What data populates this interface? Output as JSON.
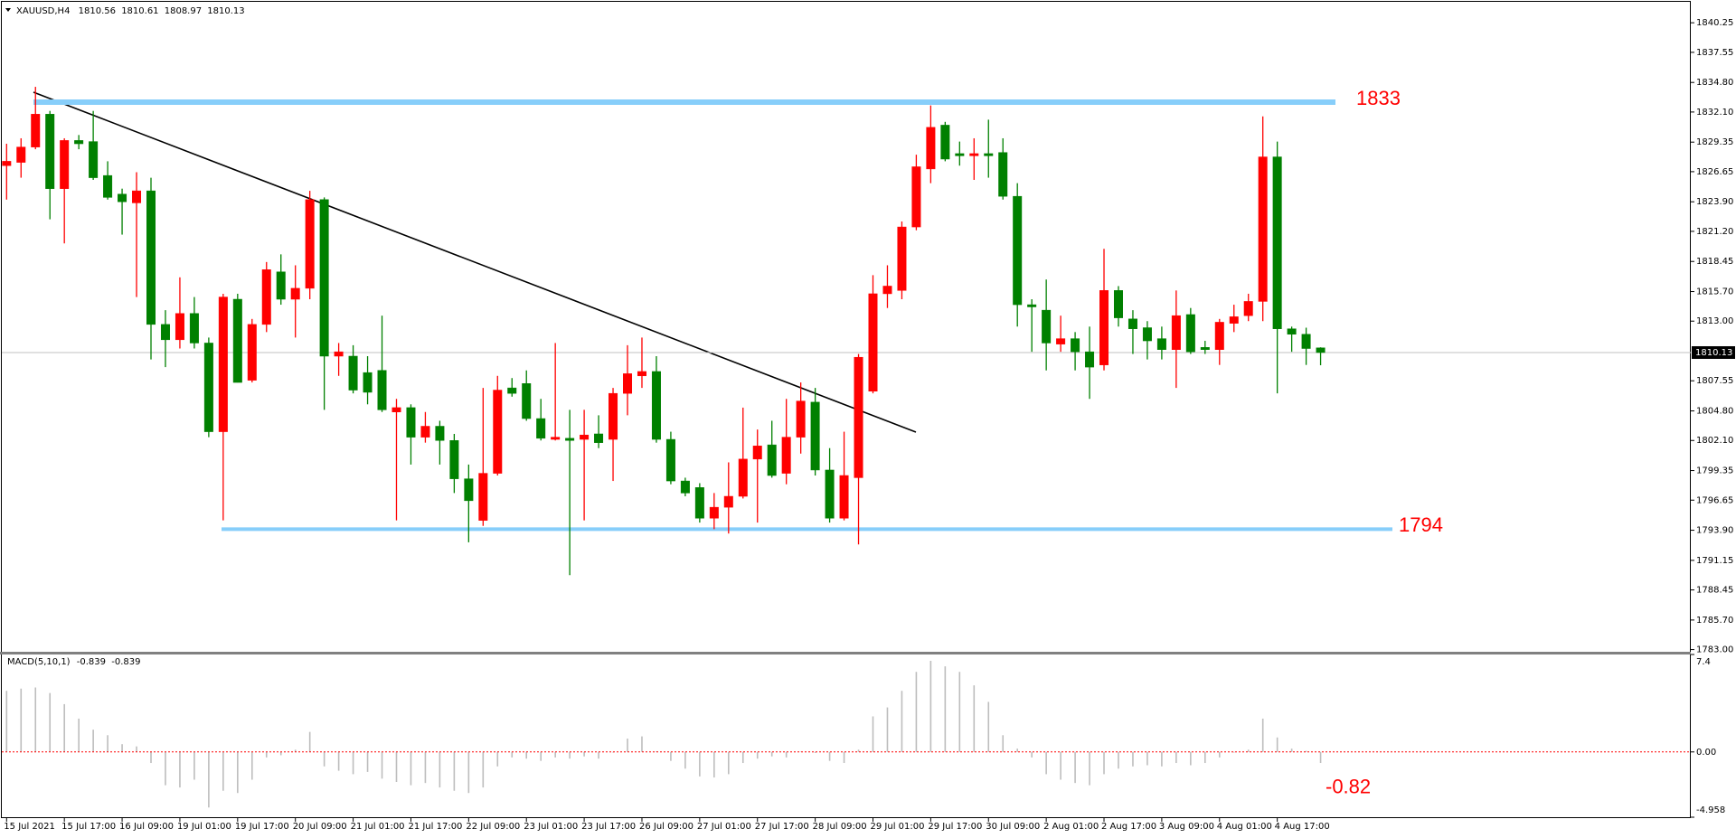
{
  "chart_data": {
    "type": "candlestick",
    "symbol": "XAUUSD,H4",
    "ohlc": [
      1810.56,
      1810.61,
      1808.97,
      1810.13
    ],
    "up_color": "#ff0000",
    "down_color": "#008000",
    "categories": [
      "15 Jul 2021",
      null,
      null,
      null,
      "15 Jul 17:00",
      null,
      null,
      null,
      "16 Jul 09:00",
      null,
      null,
      null,
      "19 Jul 01:00",
      null,
      null,
      null,
      "19 Jul 17:00",
      null,
      null,
      null,
      "20 Jul 09:00",
      null,
      null,
      null,
      "21 Jul 01:00",
      null,
      null,
      null,
      "21 Jul 17:00",
      null,
      null,
      null,
      "22 Jul 09:00",
      null,
      null,
      null,
      "23 Jul 01:00",
      null,
      null,
      null,
      "23 Jul 17:00",
      null,
      null,
      null,
      "26 Jul 09:00",
      null,
      null,
      null,
      "27 Jul 01:00",
      null,
      null,
      null,
      "27 Jul 17:00",
      null,
      null,
      null,
      "28 Jul 09:00",
      null,
      null,
      null,
      "29 Jul 01:00",
      null,
      null,
      null,
      "29 Jul 17:00",
      null,
      null,
      null,
      "30 Jul 09:00",
      null,
      null,
      null,
      "2 Aug 01:00",
      null,
      null,
      null,
      "2 Aug 17:00",
      null,
      null,
      null,
      "3 Aug 09:00",
      null,
      null,
      null,
      "4 Aug 01:00",
      null,
      null,
      null,
      "4 Aug 17:00",
      null,
      null,
      null
    ],
    "open": [
      1827.2,
      1827.5,
      1828.9,
      1831.9,
      1825.1,
      1829.5,
      1829.4,
      1826.3,
      1824.6,
      1823.8,
      1824.9,
      1812.7,
      1811.3,
      1813.7,
      1811.0,
      1802.9,
      1815.0,
      1807.6,
      1812.7,
      1817.5,
      1815.0,
      1816.0,
      1824.1,
      1809.8,
      1809.8,
      1808.3,
      1808.5,
      1804.7,
      1805.1,
      1802.4,
      1803.4,
      1802.1,
      1798.6,
      1794.8,
      1799.1,
      1806.9,
      1807.3,
      1804.1,
      1802.2,
      1802.3,
      1802.2,
      1802.7,
      1802.2,
      1806.4,
      1808.0,
      1808.4,
      1802.2,
      1798.4,
      1797.8,
      1795.0,
      1796.0,
      1797.0,
      1800.4,
      1801.7,
      1799.1,
      1802.4,
      1805.6,
      1799.4,
      1795.0,
      1798.7,
      1806.6,
      1815.5,
      1815.8,
      1821.6,
      1826.9,
      1830.9,
      1828.3,
      1828.1,
      1828.3,
      1828.4,
      1824.4,
      1814.5,
      1814.0,
      1810.9,
      1811.4,
      1810.2,
      1809.0,
      1815.8,
      1813.2,
      1812.4,
      1811.4,
      1810.4,
      1813.6,
      1810.6,
      1810.4,
      1812.8,
      1813.5,
      1814.8,
      1828.0,
      1812.3,
      1811.8,
      1810.56
    ],
    "high": [
      1829.2,
      1829.7,
      1834.4,
      1832.2,
      1829.7,
      1830.0,
      1832.2,
      1827.6,
      1825.1,
      1826.6,
      1826.1,
      1814.0,
      1817.0,
      1815.2,
      1811.5,
      1815.5,
      1815.5,
      1813.2,
      1818.4,
      1819.1,
      1818.1,
      1824.9,
      1824.3,
      1811.0,
      1810.8,
      1809.8,
      1813.5,
      1805.9,
      1805.4,
      1804.7,
      1803.9,
      1802.7,
      1799.9,
      1806.9,
      1808.0,
      1807.8,
      1808.5,
      1805.9,
      1811.0,
      1804.9,
      1804.9,
      1804.4,
      1806.9,
      1810.8,
      1811.5,
      1809.8,
      1802.9,
      1798.7,
      1798.2,
      1797.3,
      1800.1,
      1805.1,
      1803.1,
      1803.9,
      1805.9,
      1807.4,
      1806.9,
      1801.4,
      1802.9,
      1810.0,
      1817.2,
      1818.1,
      1822.1,
      1828.2,
      1832.7,
      1831.2,
      1829.4,
      1829.7,
      1831.4,
      1829.7,
      1825.6,
      1815.0,
      1816.8,
      1813.5,
      1812.0,
      1812.5,
      1819.6,
      1816.2,
      1814.0,
      1813.0,
      1812.5,
      1815.8,
      1814.2,
      1811.2,
      1813.2,
      1814.5,
      1815.5,
      1831.7,
      1829.4,
      1812.5,
      1812.4,
      1810.61
    ],
    "low": [
      1824.1,
      1826.1,
      1828.7,
      1822.3,
      1820.1,
      1828.7,
      1825.9,
      1824.1,
      1820.9,
      1815.2,
      1809.5,
      1808.8,
      1810.5,
      1810.5,
      1802.4,
      1794.8,
      1807.4,
      1807.4,
      1812.0,
      1814.5,
      1811.5,
      1815.0,
      1804.9,
      1808.0,
      1806.4,
      1805.4,
      1804.7,
      1794.8,
      1799.9,
      1801.9,
      1799.9,
      1797.3,
      1792.8,
      1794.3,
      1798.9,
      1806.1,
      1803.9,
      1802.1,
      1802.1,
      1789.8,
      1794.8,
      1801.4,
      1798.4,
      1804.4,
      1806.9,
      1801.9,
      1798.1,
      1797.0,
      1794.6,
      1794.0,
      1793.6,
      1796.8,
      1794.6,
      1798.7,
      1798.1,
      1800.9,
      1798.9,
      1794.6,
      1794.8,
      1792.6,
      1806.4,
      1814.2,
      1815.0,
      1821.3,
      1825.6,
      1827.6,
      1827.2,
      1825.9,
      1826.1,
      1824.1,
      1812.5,
      1810.2,
      1808.5,
      1810.2,
      1808.5,
      1805.9,
      1808.5,
      1812.5,
      1810.0,
      1809.5,
      1809.5,
      1806.9,
      1810.0,
      1810.0,
      1809.0,
      1812.0,
      1813.0,
      1813.0,
      1806.4,
      1810.2,
      1809.0,
      1808.97
    ],
    "close": [
      1827.6,
      1828.9,
      1831.9,
      1825.1,
      1829.5,
      1829.2,
      1826.1,
      1824.3,
      1823.9,
      1824.9,
      1812.7,
      1811.3,
      1813.7,
      1811.0,
      1802.9,
      1815.2,
      1807.4,
      1812.7,
      1817.7,
      1815.0,
      1816.0,
      1824.1,
      1809.8,
      1810.2,
      1806.7,
      1806.5,
      1804.9,
      1805.1,
      1802.4,
      1803.4,
      1802.1,
      1798.6,
      1796.6,
      1799.1,
      1806.7,
      1806.4,
      1804.1,
      1802.3,
      1802.4,
      1802.1,
      1802.6,
      1801.9,
      1806.4,
      1808.2,
      1808.4,
      1802.2,
      1798.4,
      1797.3,
      1795.0,
      1796.0,
      1797.0,
      1800.4,
      1801.6,
      1798.9,
      1802.4,
      1805.7,
      1799.4,
      1795.0,
      1798.9,
      1809.7,
      1815.5,
      1816.2,
      1821.6,
      1827.1,
      1830.7,
      1827.8,
      1828.1,
      1828.3,
      1828.1,
      1824.4,
      1814.5,
      1814.3,
      1811.0,
      1811.4,
      1810.2,
      1808.8,
      1815.8,
      1813.3,
      1812.3,
      1811.2,
      1810.4,
      1813.5,
      1810.2,
      1810.4,
      1812.9,
      1813.4,
      1814.8,
      1828.0,
      1812.3,
      1811.8,
      1810.5,
      1810.13
    ],
    "ylim": [
      1782.8,
      1842.0
    ],
    "yticks": [
      {
        "value": 1783,
        "label": "1783.00"
      },
      {
        "value": 1785.7,
        "label": "1785.70"
      },
      {
        "value": 1788.45,
        "label": "1788.45"
      },
      {
        "value": 1791.15,
        "label": "1791.15"
      },
      {
        "value": 1793.9,
        "label": "1793.90"
      },
      {
        "value": 1796.65,
        "label": "1796.65"
      },
      {
        "value": 1799.35,
        "label": "1799.35"
      },
      {
        "value": 1802.1,
        "label": "1802.10"
      },
      {
        "value": 1804.8,
        "label": "1804.80"
      },
      {
        "value": 1807.55,
        "label": "1807.55"
      },
      {
        "value": 1813,
        "label": "1813.00"
      },
      {
        "value": 1815.7,
        "label": "1815.70"
      },
      {
        "value": 1818.45,
        "label": "1818.45"
      },
      {
        "value": 1821.2,
        "label": "1821.20"
      },
      {
        "value": 1823.9,
        "label": "1823.90"
      },
      {
        "value": 1826.65,
        "label": "1826.65"
      },
      {
        "value": 1829.35,
        "label": "1829.35"
      },
      {
        "value": 1832.1,
        "label": "1832.10"
      },
      {
        "value": 1834.8,
        "label": "1834.80"
      },
      {
        "value": 1837.55,
        "label": "1837.55"
      },
      {
        "value": 1840.25,
        "label": "1840.25"
      }
    ],
    "current_price": 1810.13,
    "levels": [
      1833,
      1794
    ],
    "level_color": "#87cefa",
    "annotation_color": "#ff0000",
    "indicator": {
      "type": "bar",
      "name": "MACD(5,10,1)",
      "readout": [
        -0.839,
        -0.839
      ],
      "color": "#bdbdbd",
      "values": [
        4.64,
        4.81,
        4.89,
        4.47,
        3.63,
        2.53,
        1.69,
        1.27,
        0.59,
        0.42,
        -0.84,
        -2.53,
        -2.7,
        -2.11,
        -4.22,
        -2.95,
        -3.12,
        -2.11,
        -0.42,
        -0.25,
        0.17,
        1.52,
        -1.1,
        -1.43,
        -1.69,
        -1.52,
        -2.03,
        -2.28,
        -2.53,
        -2.36,
        -2.7,
        -2.95,
        -3.12,
        -2.7,
        -1.1,
        -0.42,
        -0.51,
        -0.68,
        -0.42,
        -0.51,
        -0.34,
        -0.51,
        -0.05,
        1.01,
        1.18,
        0.05,
        -0.68,
        -1.27,
        -1.86,
        -1.94,
        -1.69,
        -0.84,
        -0.51,
        -0.34,
        -0.42,
        0.03,
        -0.08,
        -0.68,
        -0.84,
        0.17,
        2.7,
        3.38,
        4.64,
        6.08,
        6.92,
        6.5,
        6.08,
        5.06,
        3.8,
        1.27,
        0.25,
        -0.42,
        -1.69,
        -2.11,
        -2.36,
        -2.53,
        -1.69,
        -1.27,
        -1.1,
        -1.01,
        -1.1,
        -0.84,
        -1.01,
        -0.84,
        -0.42,
        -0.05,
        0.17,
        2.53,
        1.1,
        0.25,
        0.08,
        -0.839
      ],
      "ylim": [
        -4.958,
        7.4
      ],
      "yticks": [
        7.4,
        {
          "value": 0,
          "label": "0.00"
        },
        -4.958
      ],
      "annotation": -0.82
    }
  }
}
